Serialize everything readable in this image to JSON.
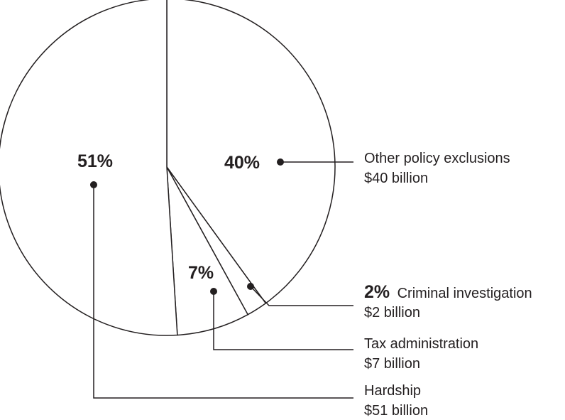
{
  "chart_data": {
    "type": "pie",
    "slices": [
      {
        "label": "Other policy exclusions",
        "percent": 40,
        "amount": "$40 billion"
      },
      {
        "label": "Criminal investigation",
        "percent": 2,
        "amount": "$2 billion"
      },
      {
        "label": "Tax administration",
        "percent": 7,
        "amount": "$7 billion"
      },
      {
        "label": "Hardship",
        "percent": 51,
        "amount": "$51 billion"
      }
    ],
    "percent_labels": [
      "40%",
      "2%",
      "7%",
      "51%"
    ],
    "start": "top",
    "direction": "clockwise",
    "colors": {
      "fill": "#ffffff",
      "stroke": "#231f20"
    }
  }
}
